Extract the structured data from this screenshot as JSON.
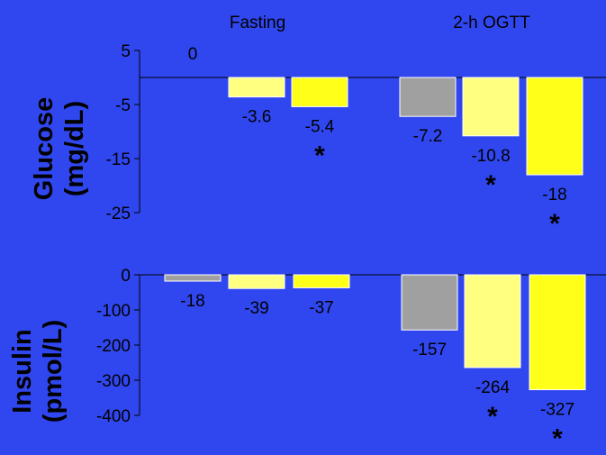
{
  "colors": {
    "background": "#3047f0",
    "placebo": "#a0a0a0",
    "low": "#ffff80",
    "high": "#ffff19",
    "bar_border": "#ffffff"
  },
  "headers": [
    "Fasting",
    "2-h OGTT"
  ],
  "significance_marker": "*",
  "chart_data": [
    {
      "type": "bar",
      "title": "",
      "ylabel": "Glucose (mg/dL)",
      "ylabel_lines": [
        "Glucose",
        "(mg/dL)"
      ],
      "ylim": [
        -25,
        5
      ],
      "yticks": [
        5,
        -5,
        -15,
        -25
      ],
      "ytick_labels": [
        "5",
        "-5",
        "-15",
        "-25"
      ],
      "categories": [
        "Fasting",
        "2-h OGTT"
      ],
      "series": [
        {
          "color_key": "placebo",
          "values": [
            0,
            -7.2
          ],
          "labels": [
            "0",
            "-7.2"
          ],
          "significant": [
            false,
            false
          ]
        },
        {
          "color_key": "low",
          "values": [
            -3.6,
            -10.8
          ],
          "labels": [
            "-3.6",
            "-10.8"
          ],
          "significant": [
            false,
            true
          ]
        },
        {
          "color_key": "high",
          "values": [
            -5.4,
            -18
          ],
          "labels": [
            "-5.4",
            "-18"
          ],
          "significant": [
            true,
            true
          ]
        }
      ]
    },
    {
      "type": "bar",
      "title": "",
      "ylabel": "Insulin (pmol/L)",
      "ylabel_lines": [
        "Insulin",
        "(pmol/L)"
      ],
      "ylim": [
        -400,
        0
      ],
      "yticks": [
        0,
        -100,
        -200,
        -300,
        -400
      ],
      "ytick_labels": [
        "0",
        "-100",
        "-200",
        "-300",
        "-400"
      ],
      "categories": [
        "Fasting",
        "2-h OGTT"
      ],
      "series": [
        {
          "color_key": "placebo",
          "values": [
            -18,
            -157
          ],
          "labels": [
            "-18",
            "-157"
          ],
          "significant": [
            false,
            false
          ]
        },
        {
          "color_key": "low",
          "values": [
            -39,
            -264
          ],
          "labels": [
            "-39",
            "-264"
          ],
          "significant": [
            false,
            true
          ]
        },
        {
          "color_key": "high",
          "values": [
            -37,
            -327
          ],
          "labels": [
            "-37",
            "-327"
          ],
          "significant": [
            false,
            true
          ]
        }
      ]
    }
  ]
}
